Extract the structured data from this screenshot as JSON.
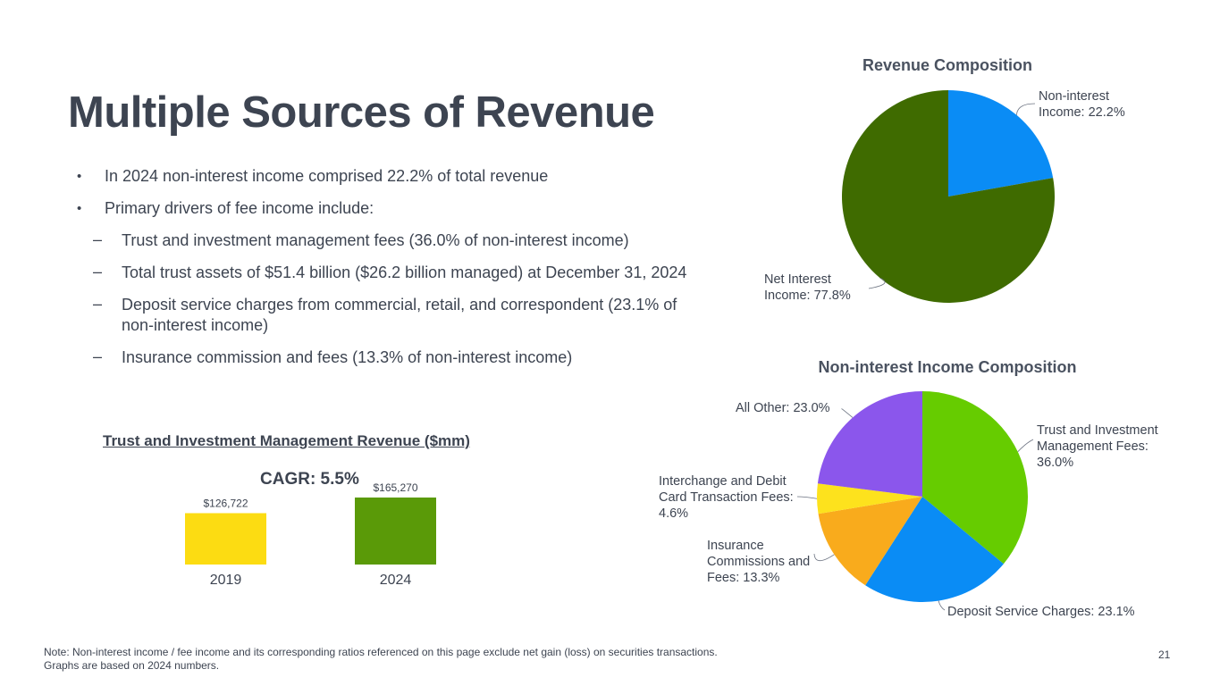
{
  "page": {
    "title": "Multiple Sources of Revenue",
    "page_number": "21"
  },
  "bullets": [
    {
      "marker": "•",
      "text": "In 2024 non-interest income comprised 22.2% of total revenue"
    },
    {
      "marker": "•",
      "text": "Primary drivers of fee income include:"
    },
    {
      "marker": "–",
      "text": "Trust and investment management fees (36.0% of non-interest income)"
    },
    {
      "marker": "–",
      "text": "Total trust assets of $51.4 billion ($26.2 billion managed)  at December 31, 2024"
    },
    {
      "marker": "–",
      "text": "Deposit service charges from commercial, retail, and correspondent (23.1% of non-interest income)"
    },
    {
      "marker": "–",
      "text": "Insurance commission and fees (13.3% of non-interest income)"
    }
  ],
  "note": {
    "line1": "Note: Non-interest income / fee income and its corresponding ratios referenced on this page exclude net gain (loss) on securities transactions.",
    "line2": "Graphs are based on 2024 numbers."
  },
  "chart_data": [
    {
      "type": "bar",
      "title": "Trust and Investment Management Revenue ($mm)",
      "annotation": "CAGR: 5.5%",
      "categories": [
        "2019",
        "2024"
      ],
      "values": [
        126722,
        165270
      ],
      "value_labels": [
        "$126,722",
        "$165,270"
      ],
      "colors": [
        "#fcdc12",
        "#5a9a08"
      ],
      "xlabel": "",
      "ylabel": "",
      "grid": false
    },
    {
      "type": "pie",
      "title": "Revenue Composition",
      "slices": [
        {
          "label": "Non-interest Income",
          "value": 22.2,
          "text": "Non-interest Income: 22.2%",
          "color": "#0a8cf5"
        },
        {
          "label": "Net Interest Income",
          "value": 77.8,
          "text": "Net Interest Income: 77.8%",
          "color": "#3f6b00"
        }
      ]
    },
    {
      "type": "pie",
      "title": "Non-interest Income Composition",
      "slices": [
        {
          "label": "Trust and Investment Management Fees",
          "value": 36.0,
          "text": "Trust and Investment Management Fees: 36.0%",
          "color": "#66cc00"
        },
        {
          "label": "Deposit Service Charges",
          "value": 23.1,
          "text": "Deposit Service Charges: 23.1%",
          "color": "#0a8cf5"
        },
        {
          "label": "Insurance Commissions and Fees",
          "value": 13.3,
          "text": "Insurance Commissions and Fees: 13.3%",
          "color": "#f9ab1c"
        },
        {
          "label": "Interchange and Debit Card Transaction Fees",
          "value": 4.6,
          "text": "Interchange and Debit Card Transaction Fees: 4.6%",
          "color": "#fde21d"
        },
        {
          "label": "All Other",
          "value": 23.0,
          "text": "All Other: 23.0%",
          "color": "#8b56ec"
        }
      ]
    }
  ]
}
